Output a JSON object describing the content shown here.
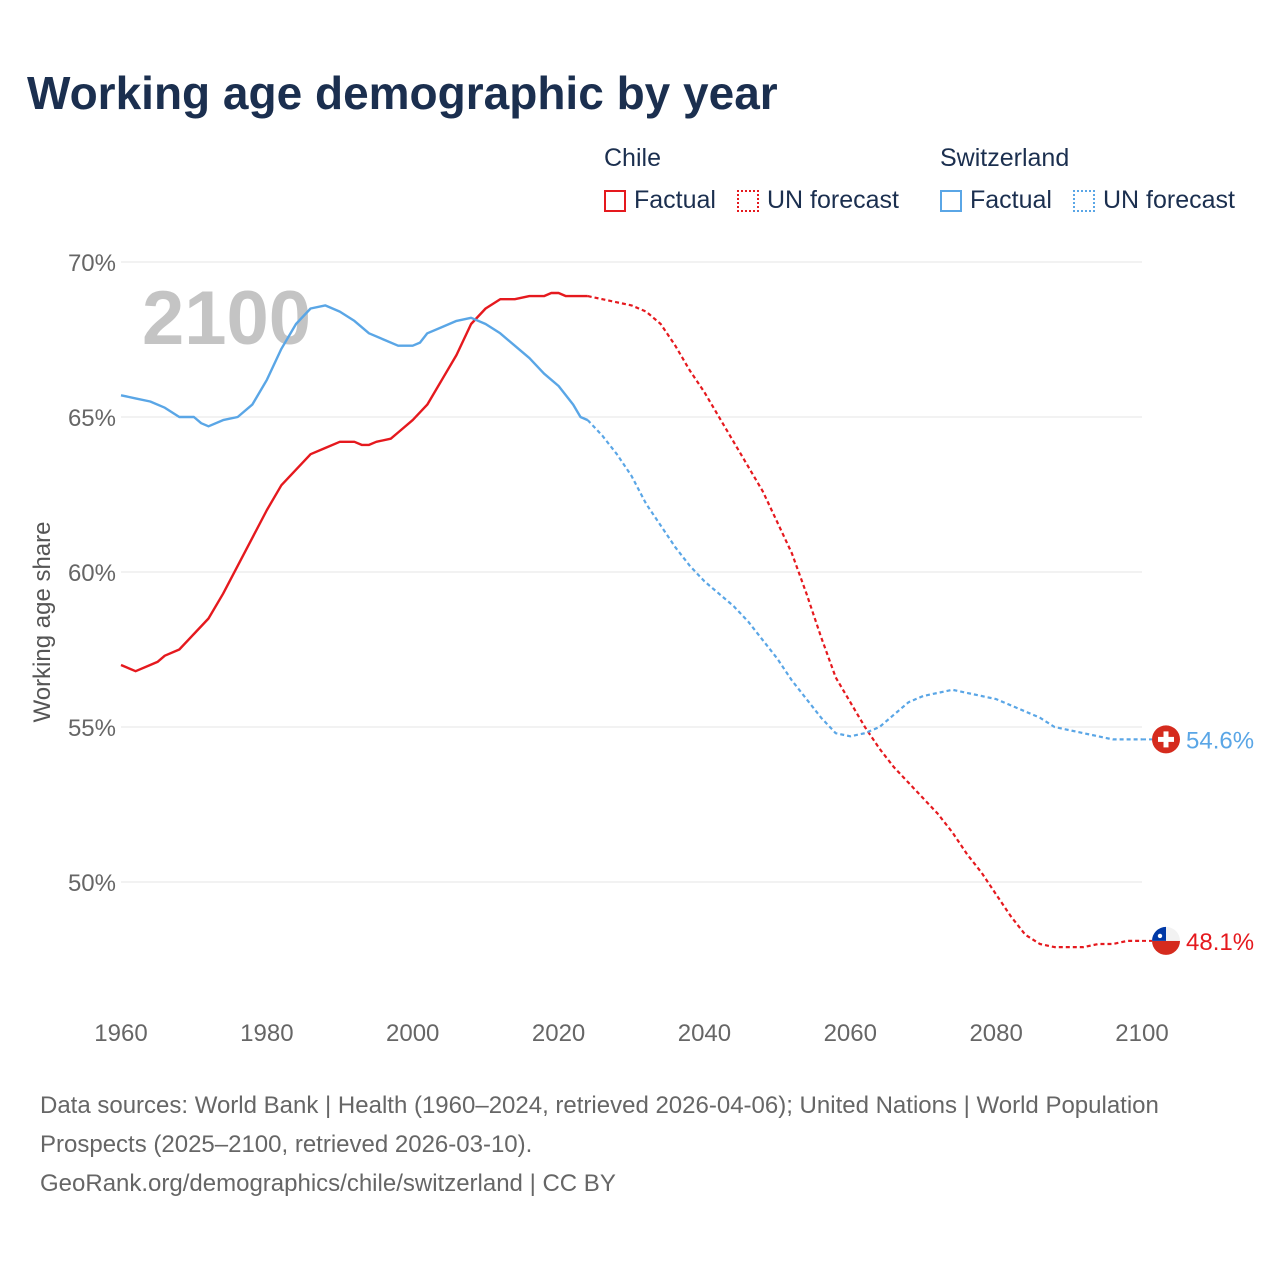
{
  "title": "Working age demographic by year",
  "legend": {
    "groups": [
      {
        "name": "Chile",
        "items": [
          "Factual",
          "UN forecast"
        ],
        "color": "#e5191e"
      },
      {
        "name": "Switzerland",
        "items": [
          "Factual",
          "UN forecast"
        ],
        "color": "#5aa6e6"
      }
    ]
  },
  "year_watermark": "2100",
  "footer": {
    "sources": "Data sources: World Bank | Health (1960–2024, retrieved 2026-04-06); United Nations | World Population Prospects (2025–2100, retrieved 2026-03-10).",
    "link": "GeoRank.org/demographics/chile/switzerland | CC BY"
  },
  "chart_data": {
    "type": "line",
    "title": "Working age demographic by year",
    "xlabel": "",
    "ylabel": "Working age share",
    "xlim": [
      1960,
      2100
    ],
    "ylim": [
      46,
      70
    ],
    "x_ticks": [
      1960,
      1980,
      2000,
      2020,
      2040,
      2060,
      2080,
      2100
    ],
    "y_ticks": [
      {
        "v": 70,
        "label": "70%"
      },
      {
        "v": 65,
        "label": "65%"
      },
      {
        "v": 60,
        "label": "60%"
      },
      {
        "v": 55,
        "label": "55%"
      },
      {
        "v": 50,
        "label": "50%"
      }
    ],
    "forecast_start": 2024,
    "series": [
      {
        "name": "Chile",
        "color": "#e5191e",
        "end_label": "48.1%",
        "flag_icon": "chile-flag-icon",
        "points": [
          [
            1960,
            57.0
          ],
          [
            1962,
            56.8
          ],
          [
            1964,
            57.0
          ],
          [
            1965,
            57.1
          ],
          [
            1966,
            57.3
          ],
          [
            1968,
            57.5
          ],
          [
            1970,
            58.0
          ],
          [
            1972,
            58.5
          ],
          [
            1974,
            59.3
          ],
          [
            1976,
            60.2
          ],
          [
            1978,
            61.1
          ],
          [
            1980,
            62.0
          ],
          [
            1982,
            62.8
          ],
          [
            1984,
            63.3
          ],
          [
            1986,
            63.8
          ],
          [
            1988,
            64.0
          ],
          [
            1990,
            64.2
          ],
          [
            1992,
            64.2
          ],
          [
            1993,
            64.1
          ],
          [
            1994,
            64.1
          ],
          [
            1995,
            64.2
          ],
          [
            1997,
            64.3
          ],
          [
            1998,
            64.5
          ],
          [
            2000,
            64.9
          ],
          [
            2002,
            65.4
          ],
          [
            2004,
            66.2
          ],
          [
            2006,
            67.0
          ],
          [
            2008,
            68.0
          ],
          [
            2010,
            68.5
          ],
          [
            2012,
            68.8
          ],
          [
            2014,
            68.8
          ],
          [
            2016,
            68.9
          ],
          [
            2018,
            68.9
          ],
          [
            2019,
            69.0
          ],
          [
            2020,
            69.0
          ],
          [
            2021,
            68.9
          ],
          [
            2022,
            68.9
          ],
          [
            2024,
            68.9
          ],
          [
            2026,
            68.8
          ],
          [
            2028,
            68.7
          ],
          [
            2030,
            68.6
          ],
          [
            2032,
            68.4
          ],
          [
            2034,
            68.0
          ],
          [
            2036,
            67.3
          ],
          [
            2038,
            66.5
          ],
          [
            2040,
            65.8
          ],
          [
            2042,
            65.0
          ],
          [
            2044,
            64.2
          ],
          [
            2046,
            63.4
          ],
          [
            2048,
            62.6
          ],
          [
            2050,
            61.6
          ],
          [
            2052,
            60.6
          ],
          [
            2054,
            59.3
          ],
          [
            2056,
            57.9
          ],
          [
            2058,
            56.6
          ],
          [
            2060,
            55.8
          ],
          [
            2062,
            55.0
          ],
          [
            2064,
            54.3
          ],
          [
            2066,
            53.7
          ],
          [
            2068,
            53.2
          ],
          [
            2070,
            52.7
          ],
          [
            2072,
            52.2
          ],
          [
            2074,
            51.6
          ],
          [
            2076,
            50.9
          ],
          [
            2078,
            50.3
          ],
          [
            2080,
            49.6
          ],
          [
            2082,
            48.9
          ],
          [
            2084,
            48.3
          ],
          [
            2086,
            48.0
          ],
          [
            2088,
            47.9
          ],
          [
            2090,
            47.9
          ],
          [
            2092,
            47.9
          ],
          [
            2094,
            48.0
          ],
          [
            2096,
            48.0
          ],
          [
            2098,
            48.1
          ],
          [
            2100,
            48.1
          ]
        ]
      },
      {
        "name": "Switzerland",
        "color": "#5aa6e6",
        "end_label": "54.6%",
        "flag_icon": "switzerland-flag-icon",
        "points": [
          [
            1960,
            65.7
          ],
          [
            1962,
            65.6
          ],
          [
            1964,
            65.5
          ],
          [
            1966,
            65.3
          ],
          [
            1968,
            65.0
          ],
          [
            1970,
            65.0
          ],
          [
            1971,
            64.8
          ],
          [
            1972,
            64.7
          ],
          [
            1974,
            64.9
          ],
          [
            1976,
            65.0
          ],
          [
            1978,
            65.4
          ],
          [
            1980,
            66.2
          ],
          [
            1982,
            67.2
          ],
          [
            1984,
            68.0
          ],
          [
            1986,
            68.5
          ],
          [
            1988,
            68.6
          ],
          [
            1990,
            68.4
          ],
          [
            1992,
            68.1
          ],
          [
            1994,
            67.7
          ],
          [
            1996,
            67.5
          ],
          [
            1998,
            67.3
          ],
          [
            2000,
            67.3
          ],
          [
            2001,
            67.4
          ],
          [
            2002,
            67.7
          ],
          [
            2004,
            67.9
          ],
          [
            2006,
            68.1
          ],
          [
            2008,
            68.2
          ],
          [
            2010,
            68.0
          ],
          [
            2012,
            67.7
          ],
          [
            2014,
            67.3
          ],
          [
            2016,
            66.9
          ],
          [
            2018,
            66.4
          ],
          [
            2020,
            66.0
          ],
          [
            2022,
            65.4
          ],
          [
            2023,
            65.0
          ],
          [
            2024,
            64.9
          ],
          [
            2026,
            64.4
          ],
          [
            2028,
            63.8
          ],
          [
            2030,
            63.1
          ],
          [
            2032,
            62.2
          ],
          [
            2034,
            61.5
          ],
          [
            2036,
            60.8
          ],
          [
            2038,
            60.2
          ],
          [
            2040,
            59.7
          ],
          [
            2042,
            59.3
          ],
          [
            2044,
            58.9
          ],
          [
            2046,
            58.4
          ],
          [
            2048,
            57.8
          ],
          [
            2050,
            57.2
          ],
          [
            2052,
            56.5
          ],
          [
            2054,
            55.9
          ],
          [
            2056,
            55.3
          ],
          [
            2058,
            54.8
          ],
          [
            2060,
            54.7
          ],
          [
            2062,
            54.8
          ],
          [
            2064,
            55.0
          ],
          [
            2066,
            55.4
          ],
          [
            2068,
            55.8
          ],
          [
            2070,
            56.0
          ],
          [
            2072,
            56.1
          ],
          [
            2074,
            56.2
          ],
          [
            2076,
            56.1
          ],
          [
            2078,
            56.0
          ],
          [
            2080,
            55.9
          ],
          [
            2082,
            55.7
          ],
          [
            2084,
            55.5
          ],
          [
            2086,
            55.3
          ],
          [
            2088,
            55.0
          ],
          [
            2090,
            54.9
          ],
          [
            2092,
            54.8
          ],
          [
            2094,
            54.7
          ],
          [
            2096,
            54.6
          ],
          [
            2098,
            54.6
          ],
          [
            2100,
            54.6
          ]
        ]
      }
    ]
  }
}
